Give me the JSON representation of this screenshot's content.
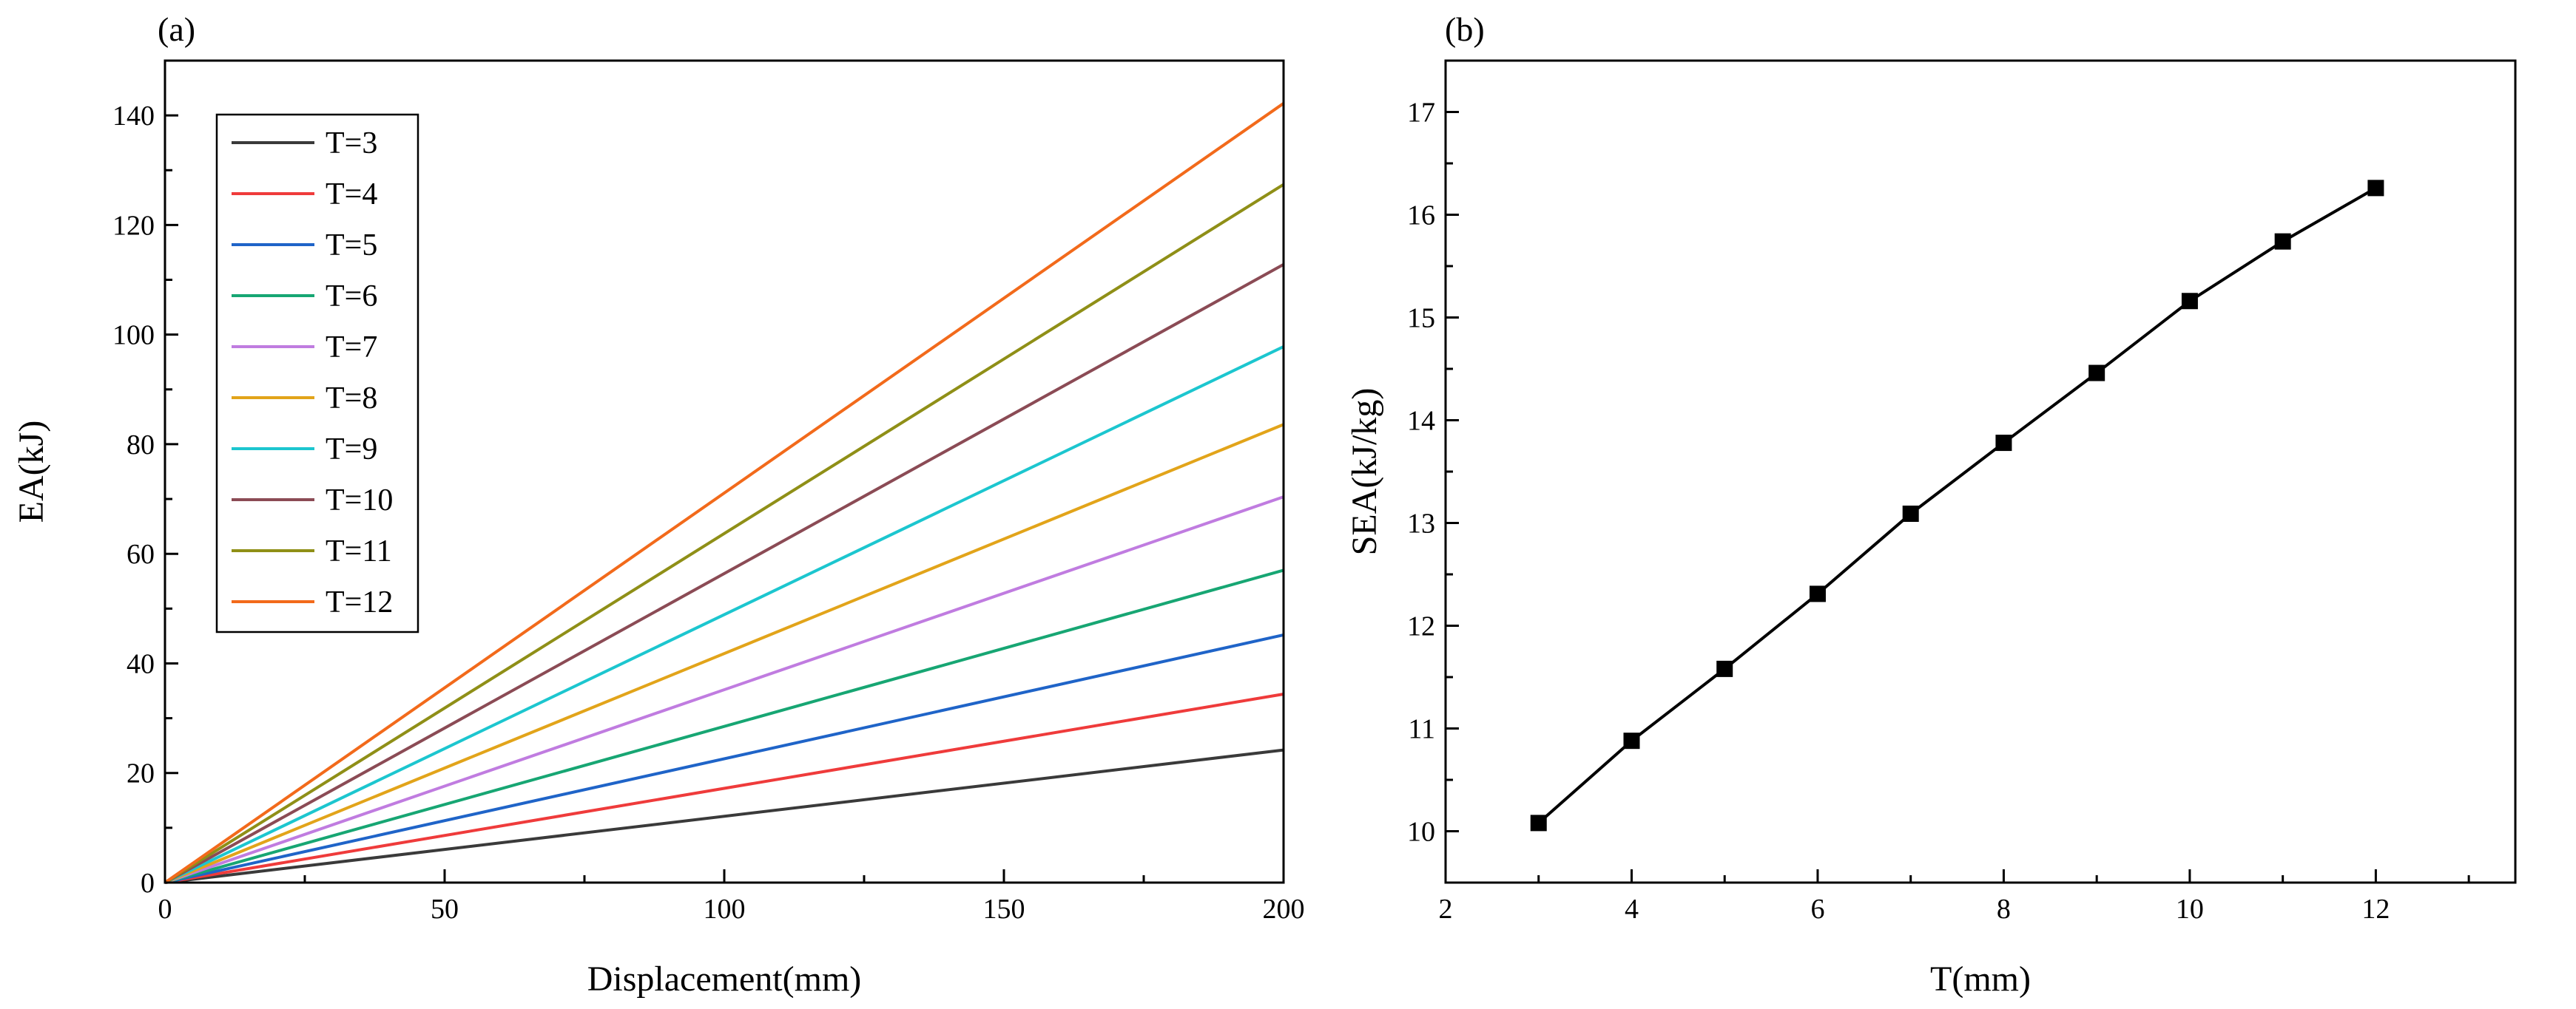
{
  "chart_data": [
    {
      "type": "line",
      "panel_label": "(a)",
      "xlabel": "Displacement(mm)",
      "ylabel": "EA(kJ)",
      "xlim": [
        0,
        200
      ],
      "ylim": [
        0,
        150
      ],
      "xticks": [
        0,
        50,
        100,
        150,
        200
      ],
      "yticks": [
        0,
        20,
        40,
        60,
        80,
        100,
        120,
        140
      ],
      "grid": false,
      "legend_position": "top-left",
      "series": [
        {
          "name": "T=3",
          "color": "#3a3a3a",
          "x": [
            0,
            200
          ],
          "y": [
            0,
            24.2
          ]
        },
        {
          "name": "T=4",
          "color": "#ef3b3b",
          "x": [
            0,
            200
          ],
          "y": [
            0,
            34.4
          ]
        },
        {
          "name": "T=5",
          "color": "#1f64c8",
          "x": [
            0,
            200
          ],
          "y": [
            0,
            45.2
          ]
        },
        {
          "name": "T=6",
          "color": "#17a673",
          "x": [
            0,
            200
          ],
          "y": [
            0,
            57.0
          ]
        },
        {
          "name": "T=7",
          "color": "#c07ce0",
          "x": [
            0,
            200
          ],
          "y": [
            0,
            70.4
          ]
        },
        {
          "name": "T=8",
          "color": "#e2a41a",
          "x": [
            0,
            200
          ],
          "y": [
            0,
            83.6
          ]
        },
        {
          "name": "T=9",
          "color": "#1cc6cf",
          "x": [
            0,
            200
          ],
          "y": [
            0,
            97.8
          ]
        },
        {
          "name": "T=10",
          "color": "#8b4b55",
          "x": [
            0,
            200
          ],
          "y": [
            0,
            112.8
          ]
        },
        {
          "name": "T=11",
          "color": "#8f8f17",
          "x": [
            0,
            200
          ],
          "y": [
            0,
            127.4
          ]
        },
        {
          "name": "T=12",
          "color": "#f26a1b",
          "x": [
            0,
            200
          ],
          "y": [
            0,
            142.2
          ]
        }
      ]
    },
    {
      "type": "line",
      "panel_label": "(b)",
      "xlabel": "T(mm)",
      "ylabel": "SEA(kJ/kg)",
      "xlim": [
        2,
        13.5
      ],
      "ylim": [
        9.5,
        17.5
      ],
      "xticks": [
        2,
        4,
        6,
        8,
        10,
        12
      ],
      "yticks": [
        10,
        11,
        12,
        13,
        14,
        15,
        16,
        17
      ],
      "grid": false,
      "marker": "square",
      "series": [
        {
          "color": "#000000",
          "x": [
            3,
            4,
            5,
            6,
            7,
            8,
            9,
            10,
            11,
            12
          ],
          "y": [
            10.08,
            10.88,
            11.58,
            12.31,
            13.09,
            13.78,
            14.46,
            15.16,
            15.74,
            16.26
          ]
        }
      ]
    }
  ]
}
